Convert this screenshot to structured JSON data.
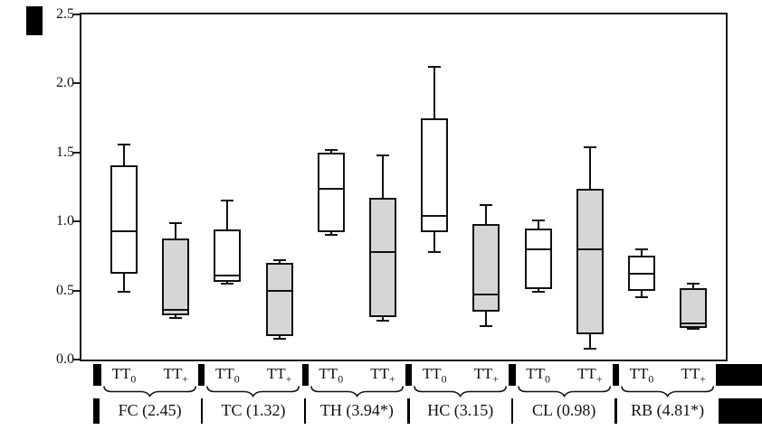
{
  "figure": {
    "background": "#ffffff",
    "frame_color": "#1a1a1a"
  },
  "y_axis": {
    "min": 0,
    "max": 2.5,
    "tick_values": [
      2.5,
      2.0,
      1.5,
      1.0,
      0.5,
      0.0
    ],
    "tick_labels": [
      "2.5",
      "2.0",
      "1.5",
      "1.0",
      "0.5",
      "0.0"
    ]
  },
  "chart_data": {
    "type": "boxplot",
    "ylim": [
      0,
      2.5
    ],
    "grid": false,
    "line_color": "#111111",
    "box_fill_tt0": "#ffffff",
    "box_fill_ttplus": "#d6d6d6",
    "x_series": [
      {
        "base": "TT",
        "sub": "0"
      },
      {
        "base": "TT",
        "sub": "+"
      }
    ],
    "groups": [
      {
        "label": "FC (2.45)",
        "boxes": [
          {
            "series": "TT0",
            "whisker_low": 0.49,
            "q1": 0.62,
            "median": 0.93,
            "q3": 1.41,
            "whisker_high": 1.56
          },
          {
            "series": "TT+",
            "whisker_low": 0.3,
            "q1": 0.32,
            "median": 0.36,
            "q3": 0.88,
            "whisker_high": 0.99
          }
        ]
      },
      {
        "label": "TC (1.32)",
        "boxes": [
          {
            "series": "TT0",
            "whisker_low": 0.55,
            "q1": 0.56,
            "median": 0.61,
            "q3": 0.94,
            "whisker_high": 1.15
          },
          {
            "series": "TT+",
            "whisker_low": 0.15,
            "q1": 0.17,
            "median": 0.5,
            "q3": 0.7,
            "whisker_high": 0.72
          }
        ]
      },
      {
        "label": "TH (3.94*)",
        "boxes": [
          {
            "series": "TT0",
            "whisker_low": 0.9,
            "q1": 0.92,
            "median": 1.24,
            "q3": 1.5,
            "whisker_high": 1.52
          },
          {
            "series": "TT+",
            "whisker_low": 0.28,
            "q1": 0.31,
            "median": 0.78,
            "q3": 1.17,
            "whisker_high": 1.48
          }
        ]
      },
      {
        "label": "HC (3.15)",
        "boxes": [
          {
            "series": "TT0",
            "whisker_low": 0.78,
            "q1": 0.92,
            "median": 1.04,
            "q3": 1.75,
            "whisker_high": 2.12
          },
          {
            "series": "TT+",
            "whisker_low": 0.24,
            "q1": 0.35,
            "median": 0.47,
            "q3": 0.98,
            "whisker_high": 1.12
          }
        ]
      },
      {
        "label": "CL (0.98)",
        "boxes": [
          {
            "series": "TT0",
            "whisker_low": 0.49,
            "q1": 0.51,
            "median": 0.8,
            "q3": 0.95,
            "whisker_high": 1.01
          },
          {
            "series": "TT+",
            "whisker_low": 0.08,
            "q1": 0.18,
            "median": 0.8,
            "q3": 1.24,
            "whisker_high": 1.54
          }
        ]
      },
      {
        "label": "RB (4.81*)",
        "boxes": [
          {
            "series": "TT0",
            "whisker_low": 0.45,
            "q1": 0.5,
            "median": 0.62,
            "q3": 0.75,
            "whisker_high": 0.8
          },
          {
            "series": "TT+",
            "whisker_low": 0.22,
            "q1": 0.23,
            "median": 0.26,
            "q3": 0.52,
            "whisker_high": 0.55
          }
        ]
      }
    ]
  }
}
